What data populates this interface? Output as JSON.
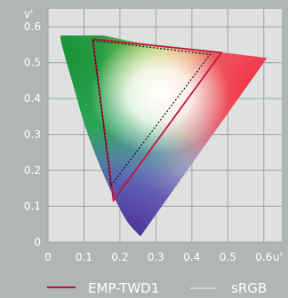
{
  "chart_data": {
    "type": "scatter",
    "title": "",
    "xlabel": "u'",
    "ylabel": "v'",
    "xlim": [
      0,
      0.65
    ],
    "ylim": [
      0,
      0.65
    ],
    "x_ticks": [
      "0",
      "0.1",
      "0.2",
      "0.3",
      "0.4",
      "0.5",
      "0.6"
    ],
    "y_ticks": [
      "0",
      "0.1",
      "0.2",
      "0.3",
      "0.4",
      "0.5",
      "0.6"
    ],
    "x_tick_values": [
      0,
      0.1,
      0.2,
      0.3,
      0.4,
      0.5,
      0.6
    ],
    "y_tick_values": [
      0,
      0.1,
      0.2,
      0.3,
      0.4,
      0.5,
      0.6
    ],
    "grid": true,
    "legend_position": "bottom",
    "series": [
      {
        "name": "EMP-TWD1",
        "color": "#c0143c",
        "style": "solid",
        "points": [
          [
            0.124,
            0.566
          ],
          [
            0.482,
            0.528
          ],
          [
            0.182,
            0.116
          ],
          [
            0.124,
            0.566
          ]
        ]
      },
      {
        "name": "sRGB",
        "color": "#111111",
        "style": "dotted",
        "points": [
          [
            0.125,
            0.562
          ],
          [
            0.451,
            0.523
          ],
          [
            0.175,
            0.158
          ],
          [
            0.125,
            0.562
          ]
        ]
      }
    ],
    "spectral_locus": [
      [
        0.257,
        0.016
      ],
      [
        0.218,
        0.061
      ],
      [
        0.176,
        0.141
      ],
      [
        0.139,
        0.226
      ],
      [
        0.103,
        0.324
      ],
      [
        0.072,
        0.431
      ],
      [
        0.047,
        0.518
      ],
      [
        0.035,
        0.571
      ],
      [
        0.045,
        0.584
      ],
      [
        0.073,
        0.589
      ],
      [
        0.112,
        0.584
      ],
      [
        0.168,
        0.573
      ],
      [
        0.252,
        0.556
      ],
      [
        0.371,
        0.54
      ],
      [
        0.497,
        0.527
      ],
      [
        0.609,
        0.513
      ]
    ]
  }
}
